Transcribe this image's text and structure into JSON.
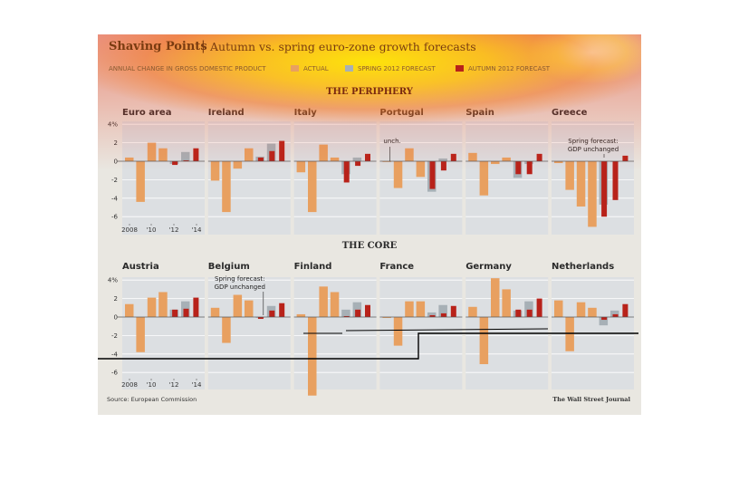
{
  "header": {
    "title": "Shaving Points",
    "separator": "|",
    "subtitle": "Autumn vs. spring euro-zone growth forecasts",
    "note": "Annual change in gross domestic product"
  },
  "legend": [
    {
      "label": "ACTUAL",
      "color": "#e8a060"
    },
    {
      "label": "SPRING 2012 FORECAST",
      "color": "#a7b0b6"
    },
    {
      "label": "AUTUMN 2012 FORECAST",
      "color": "#b8221a"
    }
  ],
  "sections": {
    "periphery": "THE PERIPHERY",
    "core": "THE CORE"
  },
  "footer": {
    "source": "Source: European Commission",
    "publisher": "The Wall Street Journal"
  },
  "colors": {
    "actual": "#e8a060",
    "spring": "#a7b0b6",
    "autumn": "#b8221a",
    "panel_bg": "#dcdfe2",
    "background": "#e9e7e1"
  },
  "chart_data": {
    "type": "bar",
    "ylim": [
      -7,
      4
    ],
    "yticks": [
      "4%",
      "2",
      "0",
      "-2",
      "-4",
      "-6"
    ],
    "ytick_values": [
      4,
      2,
      0,
      -2,
      -4,
      -6
    ],
    "xtick_labels": [
      "2008",
      "'10",
      "'12",
      "'14"
    ],
    "actual_years": [
      2008,
      2009,
      2010,
      2011
    ],
    "forecast_years": [
      2012,
      2013,
      2014
    ],
    "panels": [
      {
        "name": "Euro area",
        "group": "periphery",
        "actual": [
          0.4,
          -4.4,
          2.0,
          1.4
        ],
        "spring": [
          -0.3,
          1.0,
          null
        ],
        "autumn": [
          -0.4,
          0.1,
          1.4
        ]
      },
      {
        "name": "Ireland",
        "group": "periphery",
        "actual": [
          -2.1,
          -5.5,
          -0.8,
          1.4
        ],
        "spring": [
          0.5,
          1.9,
          null
        ],
        "autumn": [
          0.4,
          1.1,
          2.2
        ]
      },
      {
        "name": "Italy",
        "group": "periphery",
        "actual": [
          -1.2,
          -5.5,
          1.8,
          0.4
        ],
        "spring": [
          -1.4,
          0.4,
          null
        ],
        "autumn": [
          -2.3,
          -0.5,
          0.8
        ]
      },
      {
        "name": "Portugal",
        "group": "periphery",
        "actual": [
          0.0,
          -2.9,
          1.4,
          -1.7
        ],
        "spring": [
          -3.3,
          0.3,
          null
        ],
        "autumn": [
          -3.0,
          -1.0,
          0.8
        ]
      },
      {
        "name": "Spain",
        "group": "periphery",
        "actual": [
          0.9,
          -3.7,
          -0.3,
          0.4
        ],
        "spring": [
          -1.8,
          -0.3,
          null
        ],
        "autumn": [
          -1.4,
          -1.4,
          0.8
        ]
      },
      {
        "name": "Greece",
        "group": "periphery",
        "actual": [
          -0.2,
          -3.1,
          -4.9,
          -7.1
        ],
        "spring": [
          -4.7,
          0.0,
          null
        ],
        "autumn": [
          -6.0,
          -4.2,
          0.6
        ]
      },
      {
        "name": "Austria",
        "group": "core",
        "actual": [
          1.4,
          -3.8,
          2.1,
          2.7
        ],
        "spring": [
          0.8,
          1.7,
          null
        ],
        "autumn": [
          0.8,
          0.9,
          2.1
        ]
      },
      {
        "name": "Belgium",
        "group": "core",
        "actual": [
          1.0,
          -2.8,
          2.4,
          1.8
        ],
        "spring": [
          0.0,
          1.2,
          null
        ],
        "autumn": [
          -0.2,
          0.7,
          1.5
        ]
      },
      {
        "name": "Finland",
        "group": "core",
        "actual": [
          0.3,
          -8.5,
          3.3,
          2.7
        ],
        "spring": [
          0.8,
          1.6,
          null
        ],
        "autumn": [
          0.1,
          0.8,
          1.3
        ]
      },
      {
        "name": "France",
        "group": "core",
        "actual": [
          -0.1,
          -3.1,
          1.7,
          1.7
        ],
        "spring": [
          0.5,
          1.3,
          null
        ],
        "autumn": [
          0.2,
          0.4,
          1.2
        ]
      },
      {
        "name": "Germany",
        "group": "core",
        "actual": [
          1.1,
          -5.1,
          4.2,
          3.0
        ],
        "spring": [
          0.7,
          1.7,
          null
        ],
        "autumn": [
          0.8,
          0.8,
          2.0
        ]
      },
      {
        "name": "Netherlands",
        "group": "core",
        "actual": [
          1.8,
          -3.7,
          1.6,
          1.0
        ],
        "spring": [
          -0.9,
          0.7,
          null
        ],
        "autumn": [
          -0.3,
          0.3,
          1.4
        ]
      }
    ],
    "annotations": [
      {
        "panel": "Portugal",
        "text": "unch."
      },
      {
        "panel": "Greece",
        "text": "Spring forecast: GDP unchanged"
      },
      {
        "panel": "Belgium",
        "text": "Spring forecast: GDP unchanged"
      }
    ]
  }
}
